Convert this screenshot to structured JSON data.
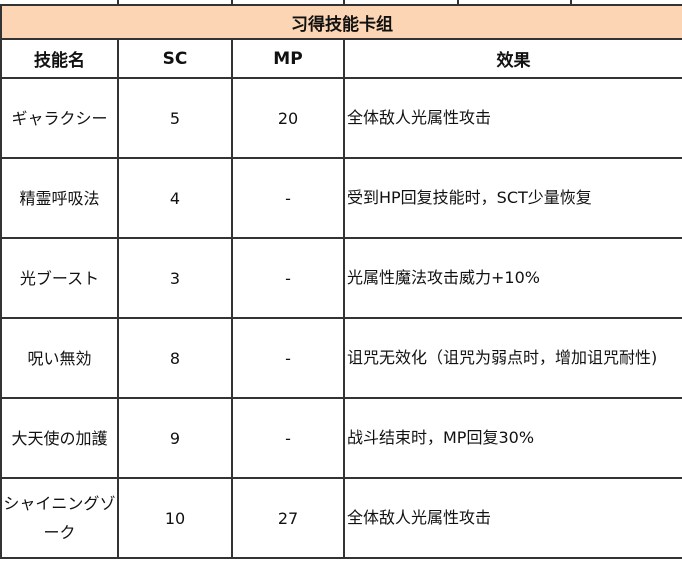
{
  "table": {
    "title": "习得技能卡组",
    "headers": [
      "技能名",
      "SC",
      "MP",
      "效果"
    ],
    "rows": [
      {
        "name": "ギャラクシー",
        "sc": "5",
        "mp": "20",
        "effect": "全体敌人光属性攻击"
      },
      {
        "name": "精霊呼吸法",
        "sc": "4",
        "mp": "-",
        "effect": "受到HP回复技能时，SCT少量恢复"
      },
      {
        "name": "光ブースト",
        "sc": "3",
        "mp": "-",
        "effect": "光属性魔法攻击威力+10%"
      },
      {
        "name": "呪い無効",
        "sc": "8",
        "mp": "-",
        "effect": "诅咒无效化（诅咒为弱点时，增加诅咒耐性)"
      },
      {
        "name": "大天使の加護",
        "sc": "9",
        "mp": "-",
        "effect": "战斗结束时，MP回复30%"
      },
      {
        "name": "シャイニングゾーク",
        "sc": "10",
        "mp": "27",
        "effect": "全体敌人光属性攻击"
      }
    ]
  },
  "colors": {
    "title_bg": "#fcd5b4",
    "border": "#333333"
  }
}
